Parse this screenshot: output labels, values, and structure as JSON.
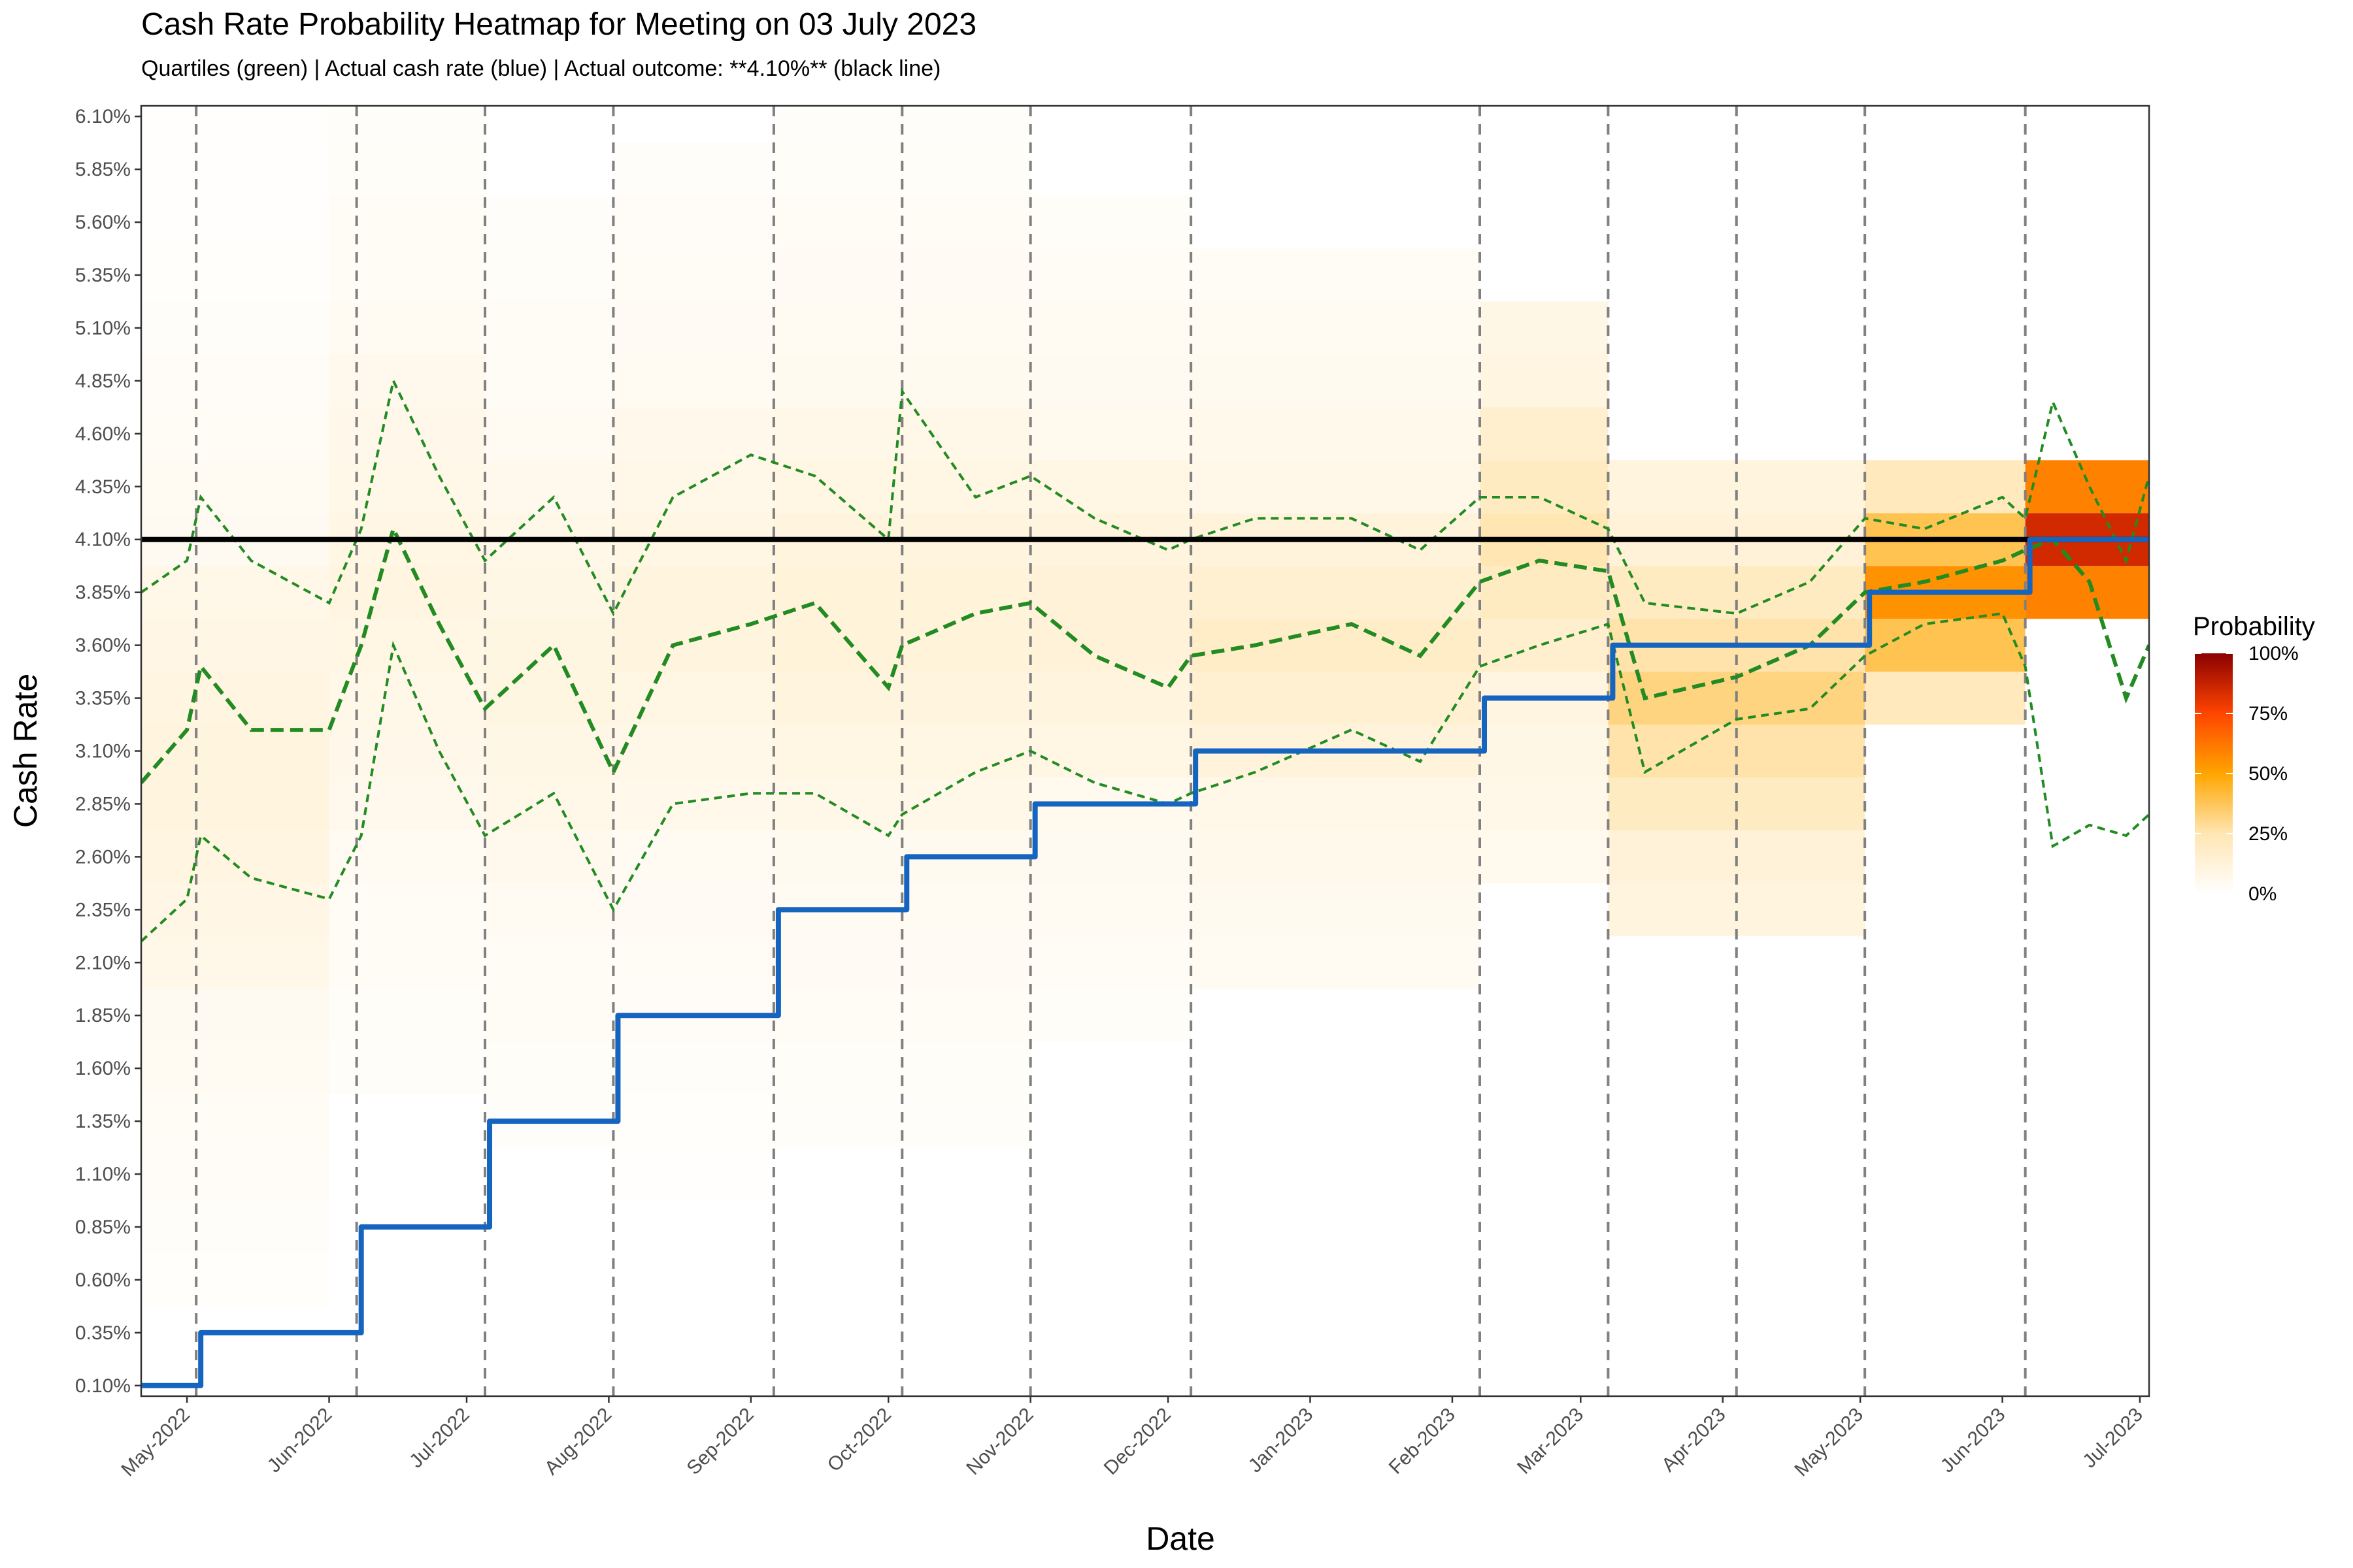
{
  "chart_data": {
    "type": "heatmap",
    "title": "Cash Rate Probability Heatmap for Meeting on 03 July 2023",
    "subtitle": "Quartiles (green) | Actual cash rate (blue) | Actual outcome: **4.10%** (black line)",
    "xlabel": "Date",
    "ylabel": "Cash Rate",
    "xlim": [
      "2022-04-21",
      "2023-07-03"
    ],
    "ylim": [
      0.05,
      6.15
    ],
    "grid": false,
    "x_ticks": [
      {
        "date": "2022-05-01",
        "label": "May-2022"
      },
      {
        "date": "2022-06-01",
        "label": "Jun-2022"
      },
      {
        "date": "2022-07-01",
        "label": "Jul-2022"
      },
      {
        "date": "2022-08-01",
        "label": "Aug-2022"
      },
      {
        "date": "2022-09-01",
        "label": "Sep-2022"
      },
      {
        "date": "2022-10-01",
        "label": "Oct-2022"
      },
      {
        "date": "2022-11-01",
        "label": "Nov-2022"
      },
      {
        "date": "2022-12-01",
        "label": "Dec-2022"
      },
      {
        "date": "2023-01-01",
        "label": "Jan-2023"
      },
      {
        "date": "2023-02-01",
        "label": "Feb-2023"
      },
      {
        "date": "2023-03-01",
        "label": "Mar-2023"
      },
      {
        "date": "2023-04-01",
        "label": "Apr-2023"
      },
      {
        "date": "2023-05-01",
        "label": "May-2023"
      },
      {
        "date": "2023-06-01",
        "label": "Jun-2023"
      },
      {
        "date": "2023-07-01",
        "label": "Jul-2023"
      }
    ],
    "y_ticks": [
      "0.10%",
      "0.35%",
      "0.60%",
      "0.85%",
      "1.10%",
      "1.35%",
      "1.60%",
      "1.85%",
      "2.10%",
      "2.35%",
      "2.60%",
      "2.85%",
      "3.10%",
      "3.35%",
      "3.60%",
      "3.85%",
      "4.10%",
      "4.35%",
      "4.60%",
      "4.85%",
      "5.10%",
      "5.35%",
      "5.60%",
      "5.85%",
      "6.10%"
    ],
    "meeting_dates": [
      "2022-05-03",
      "2022-06-07",
      "2022-07-05",
      "2022-08-02",
      "2022-09-06",
      "2022-10-04",
      "2022-11-01",
      "2022-12-06",
      "2023-02-07",
      "2023-03-07",
      "2023-04-04",
      "2023-05-02",
      "2023-06-06"
    ],
    "actual_outcome": 4.1,
    "actual_cash_rate": [
      {
        "date": "2022-04-21",
        "rate": 0.1
      },
      {
        "date": "2022-05-04",
        "rate": 0.35
      },
      {
        "date": "2022-06-08",
        "rate": 0.85
      },
      {
        "date": "2022-07-06",
        "rate": 1.35
      },
      {
        "date": "2022-08-03",
        "rate": 1.85
      },
      {
        "date": "2022-09-07",
        "rate": 2.35
      },
      {
        "date": "2022-10-05",
        "rate": 2.6
      },
      {
        "date": "2022-11-02",
        "rate": 2.85
      },
      {
        "date": "2022-12-07",
        "rate": 3.1
      },
      {
        "date": "2023-02-08",
        "rate": 3.35
      },
      {
        "date": "2023-03-08",
        "rate": 3.6
      },
      {
        "date": "2023-05-03",
        "rate": 3.85
      },
      {
        "date": "2023-06-07",
        "rate": 4.1
      }
    ],
    "quartiles": {
      "dates": [
        "2022-04-21",
        "2022-05-01",
        "2022-05-04",
        "2022-05-15",
        "2022-06-01",
        "2022-06-08",
        "2022-06-15",
        "2022-06-25",
        "2022-07-05",
        "2022-07-20",
        "2022-08-02",
        "2022-08-15",
        "2022-09-01",
        "2022-09-15",
        "2022-10-01",
        "2022-10-04",
        "2022-10-20",
        "2022-11-01",
        "2022-11-15",
        "2022-12-01",
        "2022-12-06",
        "2022-12-20",
        "2023-01-10",
        "2023-01-25",
        "2023-02-07",
        "2023-02-20",
        "2023-03-07",
        "2023-03-15",
        "2023-04-04",
        "2023-04-20",
        "2023-05-02",
        "2023-05-15",
        "2023-06-01",
        "2023-06-06",
        "2023-06-12",
        "2023-06-20",
        "2023-06-28",
        "2023-07-03"
      ],
      "q1": [
        2.2,
        2.4,
        2.7,
        2.5,
        2.4,
        2.7,
        3.6,
        3.1,
        2.7,
        2.9,
        2.35,
        2.85,
        2.9,
        2.9,
        2.7,
        2.8,
        3.0,
        3.1,
        2.95,
        2.85,
        2.9,
        3.0,
        3.2,
        3.05,
        3.5,
        3.6,
        3.7,
        3.0,
        3.25,
        3.3,
        3.55,
        3.7,
        3.75,
        3.5,
        2.65,
        2.75,
        2.7,
        2.8
      ],
      "median": [
        2.95,
        3.2,
        3.5,
        3.2,
        3.2,
        3.6,
        4.15,
        3.7,
        3.3,
        3.6,
        3.0,
        3.6,
        3.7,
        3.8,
        3.4,
        3.6,
        3.75,
        3.8,
        3.55,
        3.4,
        3.55,
        3.6,
        3.7,
        3.55,
        3.9,
        4.0,
        3.95,
        3.35,
        3.45,
        3.6,
        3.85,
        3.9,
        4.0,
        4.05,
        4.1,
        3.9,
        3.35,
        3.6
      ],
      "q3": [
        3.85,
        4.0,
        4.3,
        4.0,
        3.8,
        4.15,
        4.85,
        4.4,
        4.0,
        4.3,
        3.75,
        4.3,
        4.5,
        4.4,
        4.1,
        4.8,
        4.3,
        4.4,
        4.2,
        4.05,
        4.1,
        4.2,
        4.2,
        4.05,
        4.3,
        4.3,
        4.15,
        3.8,
        3.75,
        3.9,
        4.2,
        4.15,
        4.3,
        4.2,
        4.75,
        4.35,
        4.0,
        4.4
      ]
    },
    "probability_scale": {
      "title": "Probability",
      "labels": [
        "0%",
        "25%",
        "50%",
        "75%",
        "100%"
      ],
      "colors": [
        "#ffffff",
        "#ffe6b3",
        "#ffa500",
        "#ff4500",
        "#8b0000"
      ]
    },
    "heatmap_bands": [
      {
        "x0": "2022-04-21",
        "x1": "2022-06-01",
        "ymin": 0.6,
        "ymax": 6.1,
        "core_lo": 2.1,
        "core_hi": 3.85,
        "intensity": 0.12
      },
      {
        "x0": "2022-06-01",
        "x1": "2022-07-05",
        "ymin": 1.6,
        "ymax": 6.1,
        "core_lo": 2.85,
        "core_hi": 4.85,
        "intensity": 0.1
      },
      {
        "x0": "2022-07-05",
        "x1": "2022-08-02",
        "ymin": 1.35,
        "ymax": 5.6,
        "core_lo": 2.6,
        "core_hi": 4.35,
        "intensity": 0.1
      },
      {
        "x0": "2022-08-02",
        "x1": "2022-09-06",
        "ymin": 1.1,
        "ymax": 5.85,
        "core_lo": 2.85,
        "core_hi": 4.6,
        "intensity": 0.11
      },
      {
        "x0": "2022-09-06",
        "x1": "2022-11-01",
        "ymin": 1.35,
        "ymax": 6.1,
        "core_lo": 2.85,
        "core_hi": 4.6,
        "intensity": 0.13
      },
      {
        "x0": "2022-11-01",
        "x1": "2022-12-06",
        "ymin": 1.85,
        "ymax": 5.6,
        "core_lo": 3.1,
        "core_hi": 4.35,
        "intensity": 0.14
      },
      {
        "x0": "2022-12-06",
        "x1": "2023-02-07",
        "ymin": 2.1,
        "ymax": 5.35,
        "core_lo": 3.1,
        "core_hi": 4.1,
        "intensity": 0.18
      },
      {
        "x0": "2023-02-07",
        "x1": "2023-03-07",
        "ymin": 2.6,
        "ymax": 5.1,
        "core_lo": 3.6,
        "core_hi": 4.6,
        "intensity": 0.25
      },
      {
        "x0": "2023-03-07",
        "x1": "2023-05-02",
        "ymin": 2.35,
        "ymax": 4.35,
        "core_lo": 2.85,
        "core_hi": 3.85,
        "intensity": 0.32
      },
      {
        "x0": "2023-05-02",
        "x1": "2023-06-06",
        "ymin": 3.35,
        "ymax": 4.35,
        "core_lo": 3.6,
        "core_hi": 4.1,
        "intensity": 0.55
      },
      {
        "x0": "2023-06-06",
        "x1": "2023-07-03",
        "ymin": 3.85,
        "ymax": 4.35,
        "core_lo": 3.85,
        "core_hi": 4.35,
        "intensity": 0.85
      }
    ],
    "series_colors": {
      "quartiles": "#228b22",
      "actual_cash_rate": "#1565c0",
      "actual_outcome": "#000000",
      "meeting_lines": "#808080"
    }
  }
}
